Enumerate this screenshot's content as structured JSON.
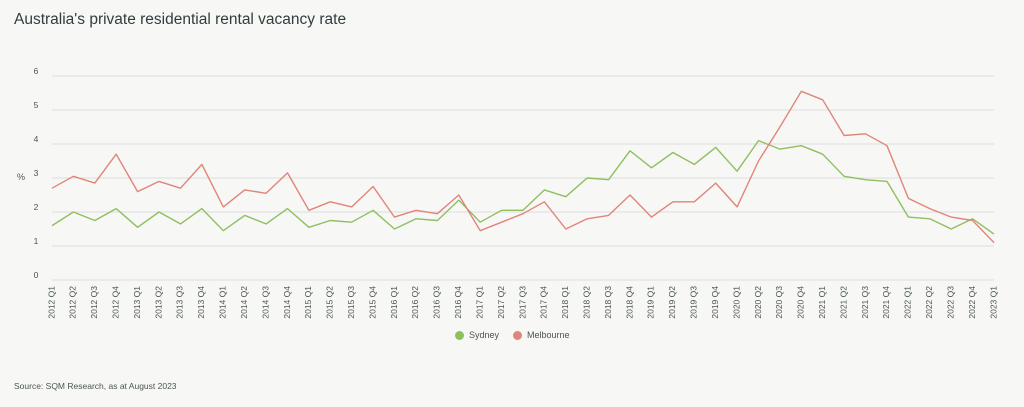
{
  "title": "Australia's private residential rental vacancy rate",
  "source": "Source: SQM Research, as at August 2023",
  "chart_data": {
    "type": "line",
    "title": "Australia's private residential rental vacancy rate",
    "ylabel": "%",
    "xlabel": "",
    "ylim": [
      0,
      6
    ],
    "yticks": [
      0,
      1,
      2,
      3,
      4,
      5,
      6
    ],
    "grid": true,
    "legend_position": "bottom-center",
    "categories": [
      "2012 Q1",
      "2012 Q2",
      "2012 Q3",
      "2012 Q4",
      "2013 Q1",
      "2013 Q2",
      "2013 Q3",
      "2013 Q4",
      "2014 Q1",
      "2014 Q2",
      "2014 Q3",
      "2014 Q4",
      "2015 Q1",
      "2015 Q2",
      "2015 Q3",
      "2015 Q4",
      "2016 Q1",
      "2016 Q2",
      "2016 Q3",
      "2016 Q4",
      "2017 Q1",
      "2017 Q2",
      "2017 Q3",
      "2017 Q4",
      "2018 Q1",
      "2018 Q2",
      "2018 Q3",
      "2018 Q4",
      "2019 Q1",
      "2019 Q2",
      "2019 Q3",
      "2019 Q4",
      "2020 Q1",
      "2020 Q2",
      "2020 Q3",
      "2020 Q4",
      "2021 Q1",
      "2021 Q2",
      "2021 Q3",
      "2021 Q4",
      "2022 Q1",
      "2022 Q2",
      "2022 Q3",
      "2022 Q4",
      "2023 Q1"
    ],
    "series": [
      {
        "name": "Sydney",
        "color": "#8fbf5f",
        "values": [
          1.6,
          2.0,
          1.75,
          2.1,
          1.55,
          2.0,
          1.65,
          2.1,
          1.45,
          1.9,
          1.65,
          2.1,
          1.55,
          1.75,
          1.7,
          2.05,
          1.5,
          1.8,
          1.75,
          2.35,
          1.7,
          2.05,
          2.05,
          2.65,
          2.45,
          3.0,
          2.95,
          3.8,
          3.3,
          3.75,
          3.4,
          3.9,
          3.2,
          4.1,
          3.85,
          3.95,
          3.7,
          3.05,
          2.95,
          2.9,
          1.85,
          1.8,
          1.5,
          1.8,
          1.35
        ]
      },
      {
        "name": "Melbourne",
        "color": "#e0857a",
        "values": [
          2.7,
          3.05,
          2.85,
          3.7,
          2.6,
          2.9,
          2.7,
          3.4,
          2.15,
          2.65,
          2.55,
          3.15,
          2.05,
          2.3,
          2.15,
          2.75,
          1.85,
          2.05,
          1.95,
          2.5,
          1.45,
          1.7,
          1.95,
          2.3,
          1.5,
          1.8,
          1.9,
          2.5,
          1.85,
          2.3,
          2.3,
          2.85,
          2.15,
          3.5,
          4.5,
          5.55,
          5.3,
          4.25,
          4.3,
          3.95,
          2.4,
          2.1,
          1.85,
          1.75,
          1.1
        ]
      }
    ]
  }
}
